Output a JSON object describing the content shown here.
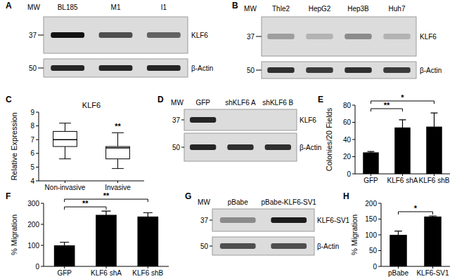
{
  "blots": [
    {
      "panel": "A",
      "mw_header": "MW",
      "lanes": [
        "BL185",
        "M1",
        "I1"
      ],
      "rows": [
        {
          "label": "KLF6",
          "mw": "37",
          "bands": [
            1,
            0.7,
            0.6
          ]
        },
        {
          "label": "β-Actin",
          "mw": "50",
          "bands": [
            0.9,
            0.9,
            0.9
          ]
        }
      ]
    },
    {
      "panel": "B",
      "mw_header": "MW",
      "lanes": [
        "Thle2",
        "HepG2",
        "Hep3B",
        "Huh7"
      ],
      "rows": [
        {
          "label": "KLF6",
          "mw": "37",
          "bands": [
            0.3,
            0.2,
            0.4,
            0.2
          ]
        },
        {
          "label": "β-Actin",
          "mw": "50",
          "bands": [
            0.85,
            0.8,
            0.85,
            0.8
          ]
        }
      ]
    },
    {
      "panel": "D",
      "mw_header": "MW",
      "lanes": [
        "GFP",
        "shKLF6 A",
        "shKLF6 B"
      ],
      "rows": [
        {
          "label": "KLF6",
          "mw": "37",
          "bands": [
            0.9,
            0,
            0
          ]
        },
        {
          "label": "β-Actin",
          "mw": "50",
          "bands": [
            0.9,
            0.85,
            0.85
          ]
        }
      ]
    },
    {
      "panel": "G",
      "mw_header": "MW",
      "lanes": [
        "pBabe",
        "pBabe-KLF6-SV1"
      ],
      "rows": [
        {
          "label": "KLF6-SV1",
          "mw": "37",
          "bands": [
            0.4,
            0.95
          ]
        },
        {
          "label": "β-Actin",
          "mw": "50",
          "bands": [
            0.7,
            0.7
          ]
        }
      ]
    }
  ],
  "chart_data": [
    {
      "type": "box",
      "panel": "C",
      "title": "KLF6",
      "y_label": "Relative Expression",
      "categories": [
        "Non-invasive",
        "Invasive"
      ],
      "boxes": [
        {
          "min": 5.6,
          "q1": 6.5,
          "median": 7.0,
          "q3": 7.6,
          "max": 8.2
        },
        {
          "min": 4.9,
          "q1": 5.6,
          "median": 6.4,
          "q3": 6.5,
          "max": 7.5
        }
      ],
      "color": "#ffffff",
      "ylim": [
        4,
        9
      ],
      "yticks": [
        4,
        5,
        6,
        7,
        8,
        9
      ],
      "annotations": [
        {
          "category": "Invasive",
          "label": "**"
        }
      ]
    },
    {
      "type": "bar",
      "panel": "E",
      "y_label": "Colonies/20 Fields",
      "categories": [
        "GFP",
        "KLF6 shA",
        "KLF6 shB"
      ],
      "values": [
        25,
        54,
        55
      ],
      "errors": [
        1,
        9,
        16
      ],
      "color": "#000000",
      "ylim": [
        0,
        80
      ],
      "yticks": [
        0,
        20,
        40,
        60,
        80
      ],
      "significance": [
        {
          "pair": [
            "GFP",
            "KLF6 shA"
          ],
          "label": "**"
        },
        {
          "pair": [
            "GFP",
            "KLF6 shB"
          ],
          "label": "*"
        }
      ]
    },
    {
      "type": "bar",
      "panel": "F",
      "y_label": "% Migration",
      "categories": [
        "GFP",
        "KLF6 shA",
        "KLF6 shB"
      ],
      "values": [
        100,
        245,
        237
      ],
      "errors": [
        15,
        18,
        18
      ],
      "color": "#000000",
      "ylim": [
        0,
        300
      ],
      "yticks": [
        0,
        100,
        200,
        300
      ],
      "significance": [
        {
          "pair": [
            "GFP",
            "KLF6 shA"
          ],
          "label": "**"
        },
        {
          "pair": [
            "GFP",
            "KLF6 shB"
          ],
          "label": "**"
        }
      ]
    },
    {
      "type": "bar",
      "panel": "H",
      "y_label": "% Migration",
      "categories": [
        "pBabe",
        "KLF6-SV1"
      ],
      "values": [
        100,
        158
      ],
      "errors": [
        12,
        2
      ],
      "color": "#000000",
      "ylim": [
        0,
        200
      ],
      "yticks": [
        0,
        50,
        100,
        150,
        200
      ],
      "significance": [
        {
          "pair": [
            "pBabe",
            "KLF6-SV1"
          ],
          "label": "*"
        }
      ]
    }
  ]
}
